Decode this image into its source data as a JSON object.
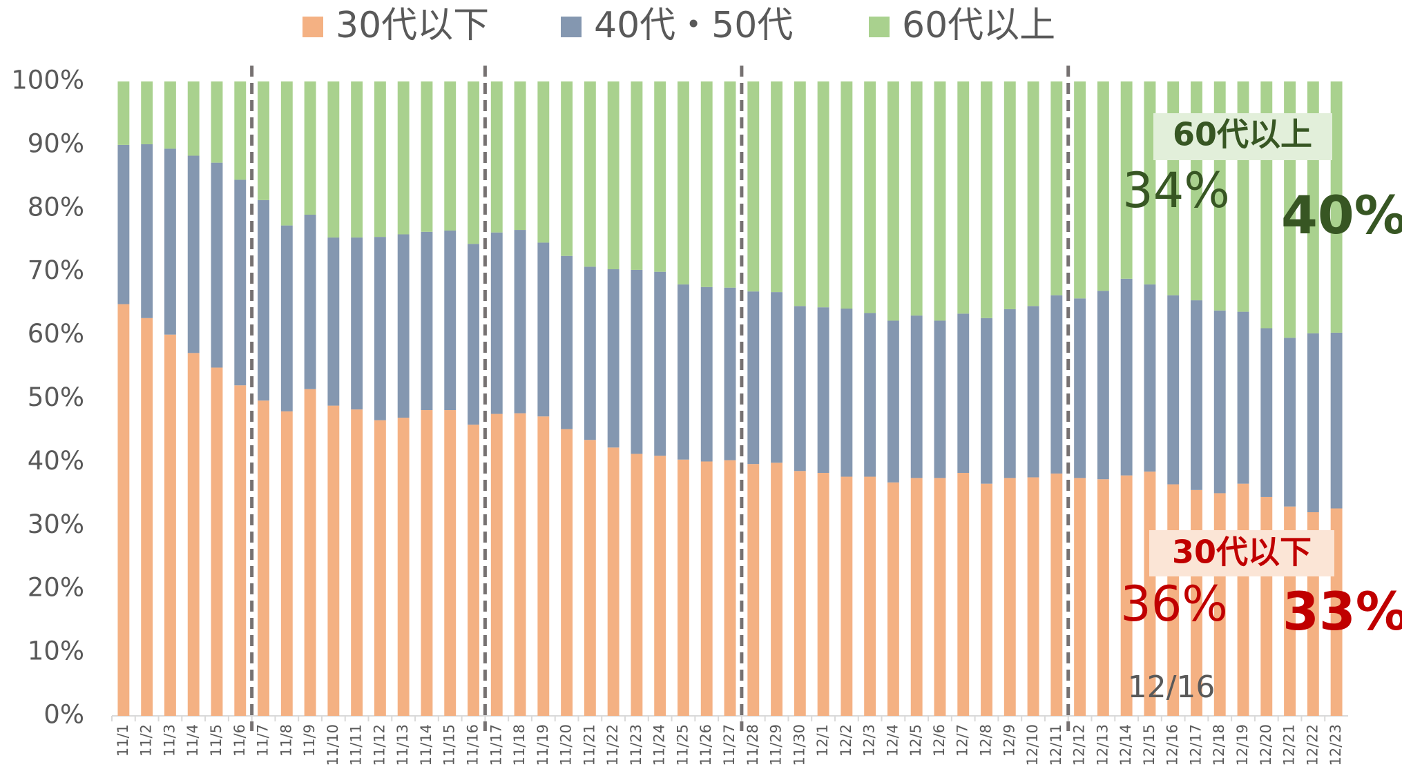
{
  "chart_data": {
    "type": "stacked_bar",
    "categories": [
      "11/1",
      "11/2",
      "11/3",
      "11/4",
      "11/5",
      "11/6",
      "11/7",
      "11/8",
      "11/9",
      "11/10",
      "11/11",
      "11/12",
      "11/13",
      "11/14",
      "11/15",
      "11/16",
      "11/17",
      "11/18",
      "11/19",
      "11/20",
      "11/21",
      "11/22",
      "11/23",
      "11/24",
      "11/25",
      "11/26",
      "11/27",
      "11/28",
      "11/29",
      "11/30",
      "12/1",
      "12/2",
      "12/3",
      "12/4",
      "12/5",
      "12/6",
      "12/7",
      "12/8",
      "12/9",
      "12/10",
      "12/11",
      "12/12",
      "12/13",
      "12/14",
      "12/15",
      "12/16",
      "12/17",
      "12/18",
      "12/19",
      "12/20",
      "12/21",
      "12/22",
      "12/23"
    ],
    "series": [
      {
        "name": "30代以下",
        "color": "#f4b183",
        "values": [
          64.9,
          62.7,
          60.1,
          57.2,
          54.9,
          52.1,
          49.7,
          48.0,
          51.5,
          48.9,
          48.3,
          46.6,
          47.0,
          48.2,
          48.2,
          45.9,
          47.6,
          47.7,
          47.2,
          45.2,
          43.5,
          42.3,
          41.3,
          41.0,
          40.4,
          40.1,
          40.3,
          39.7,
          39.9,
          38.6,
          38.3,
          37.7,
          37.7,
          36.8,
          37.5,
          37.5,
          38.3,
          36.6,
          37.5,
          37.6,
          38.2,
          37.5,
          37.3,
          37.9,
          38.5,
          36.5,
          35.6,
          35.1,
          36.6,
          34.5,
          33.0,
          32.1,
          32.7
        ]
      },
      {
        "name": "40代・50代",
        "color": "#8497b0",
        "values": [
          25.1,
          27.4,
          29.3,
          31.1,
          32.3,
          32.4,
          31.6,
          29.3,
          27.5,
          26.5,
          27.1,
          28.9,
          28.9,
          28.1,
          28.3,
          28.5,
          28.6,
          28.9,
          27.4,
          27.3,
          27.3,
          28.1,
          29.0,
          29.0,
          27.6,
          27.5,
          27.2,
          27.2,
          26.9,
          26.0,
          26.1,
          26.5,
          25.8,
          25.5,
          25.6,
          24.8,
          25.1,
          26.1,
          26.6,
          27.0,
          28.1,
          28.3,
          29.7,
          31.0,
          29.5,
          29.8,
          29.9,
          28.8,
          27.1,
          26.6,
          26.6,
          28.2,
          27.7
        ]
      },
      {
        "name": "60代以上",
        "color": "#a9d18e",
        "values": [
          10.0,
          9.9,
          10.6,
          11.7,
          12.8,
          15.5,
          18.7,
          22.7,
          21.0,
          24.6,
          24.6,
          24.5,
          24.1,
          23.7,
          23.5,
          25.6,
          23.8,
          23.4,
          25.4,
          27.5,
          29.2,
          29.6,
          29.7,
          30.0,
          32.0,
          32.4,
          32.5,
          33.1,
          33.2,
          35.4,
          35.6,
          35.8,
          36.5,
          37.7,
          36.9,
          37.7,
          36.6,
          37.3,
          35.9,
          35.4,
          33.7,
          34.2,
          33.0,
          31.1,
          32.0,
          33.7,
          34.5,
          36.1,
          36.3,
          38.9,
          40.4,
          39.7,
          39.6
        ]
      }
    ],
    "ylim": [
      0,
      100
    ],
    "yticks": [
      {
        "value": 0,
        "label": "0%"
      },
      {
        "value": 10,
        "label": "10%"
      },
      {
        "value": 20,
        "label": "20%"
      },
      {
        "value": 30,
        "label": "30%"
      },
      {
        "value": 40,
        "label": "40%"
      },
      {
        "value": 50,
        "label": "50%"
      },
      {
        "value": 60,
        "label": "60%"
      },
      {
        "value": 70,
        "label": "70%"
      },
      {
        "value": 80,
        "label": "80%"
      },
      {
        "value": 90,
        "label": "90%"
      },
      {
        "value": 100,
        "label": "100%"
      }
    ],
    "annotations": [
      "60代以上",
      "34%",
      "40%",
      "30代以下",
      "36%",
      "33%",
      "12/16"
    ]
  }
}
